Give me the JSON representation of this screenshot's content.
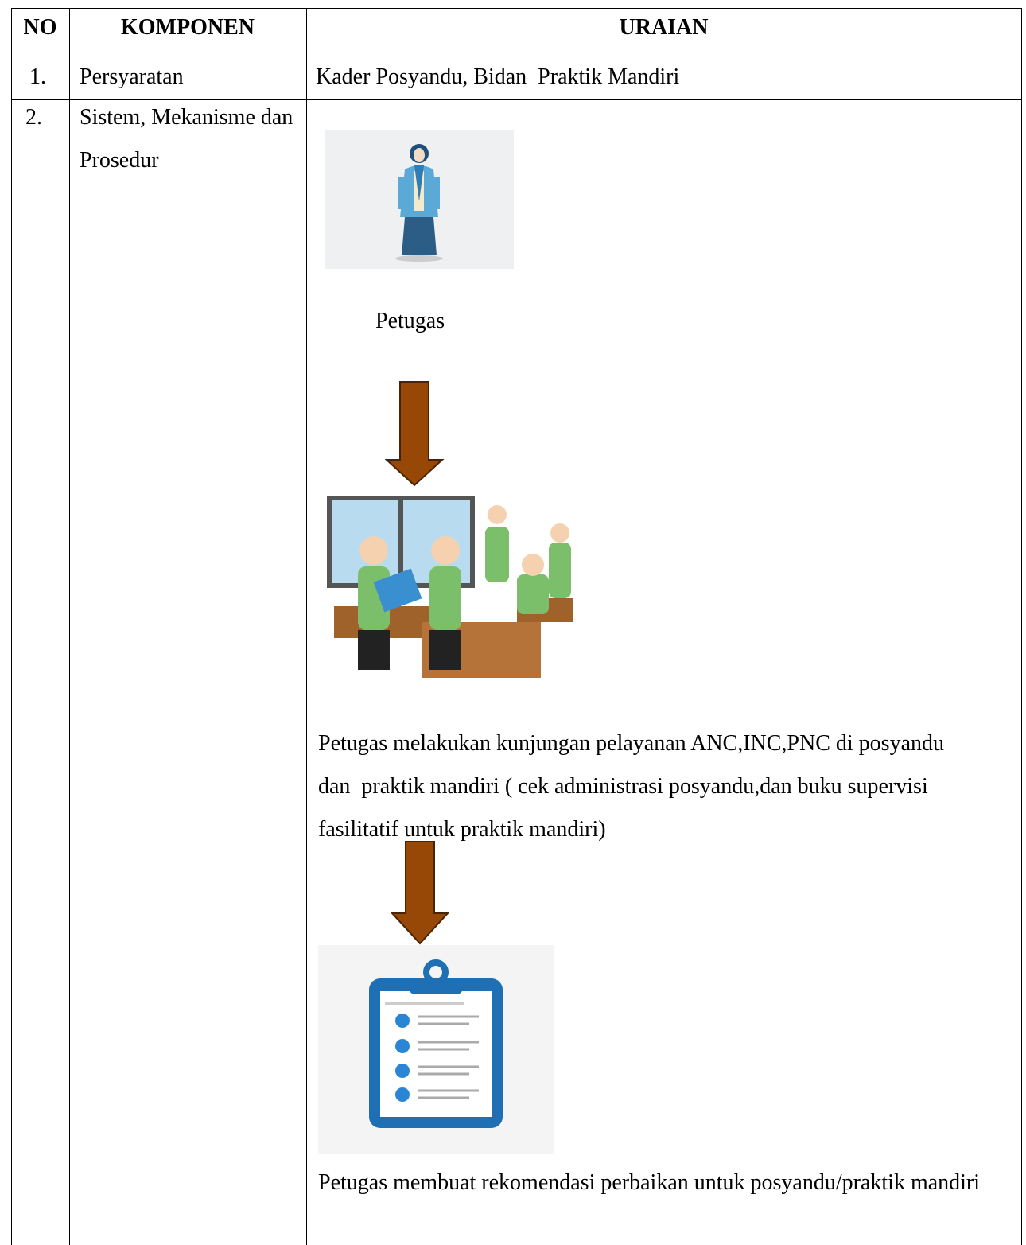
{
  "table": {
    "header": [
      "NO",
      "KOMPONEN",
      "URAIAN"
    ],
    "rows": [
      {
        "no": "1.",
        "komponen": "Persyaratan",
        "uraian": "Kader Posyandu, Bidan  Praktik Mandiri"
      },
      {
        "no": "2.",
        "komponen": "Sistem, Mekanisme dan Prosedur",
        "uraian": [
          "Petugas",
          "Petugas melakukan kunjungan pelayanan ANC,INC,PNC di posyandu dan  praktik mandiri ( cek administrasi posyandu,dan buku supervisi fasilitatif untuk praktik mandiri)",
          "Petugas membuat rekomendasi perbaikan untuk posyandu/praktik mandiri"
        ]
      }
    ]
  }
}
